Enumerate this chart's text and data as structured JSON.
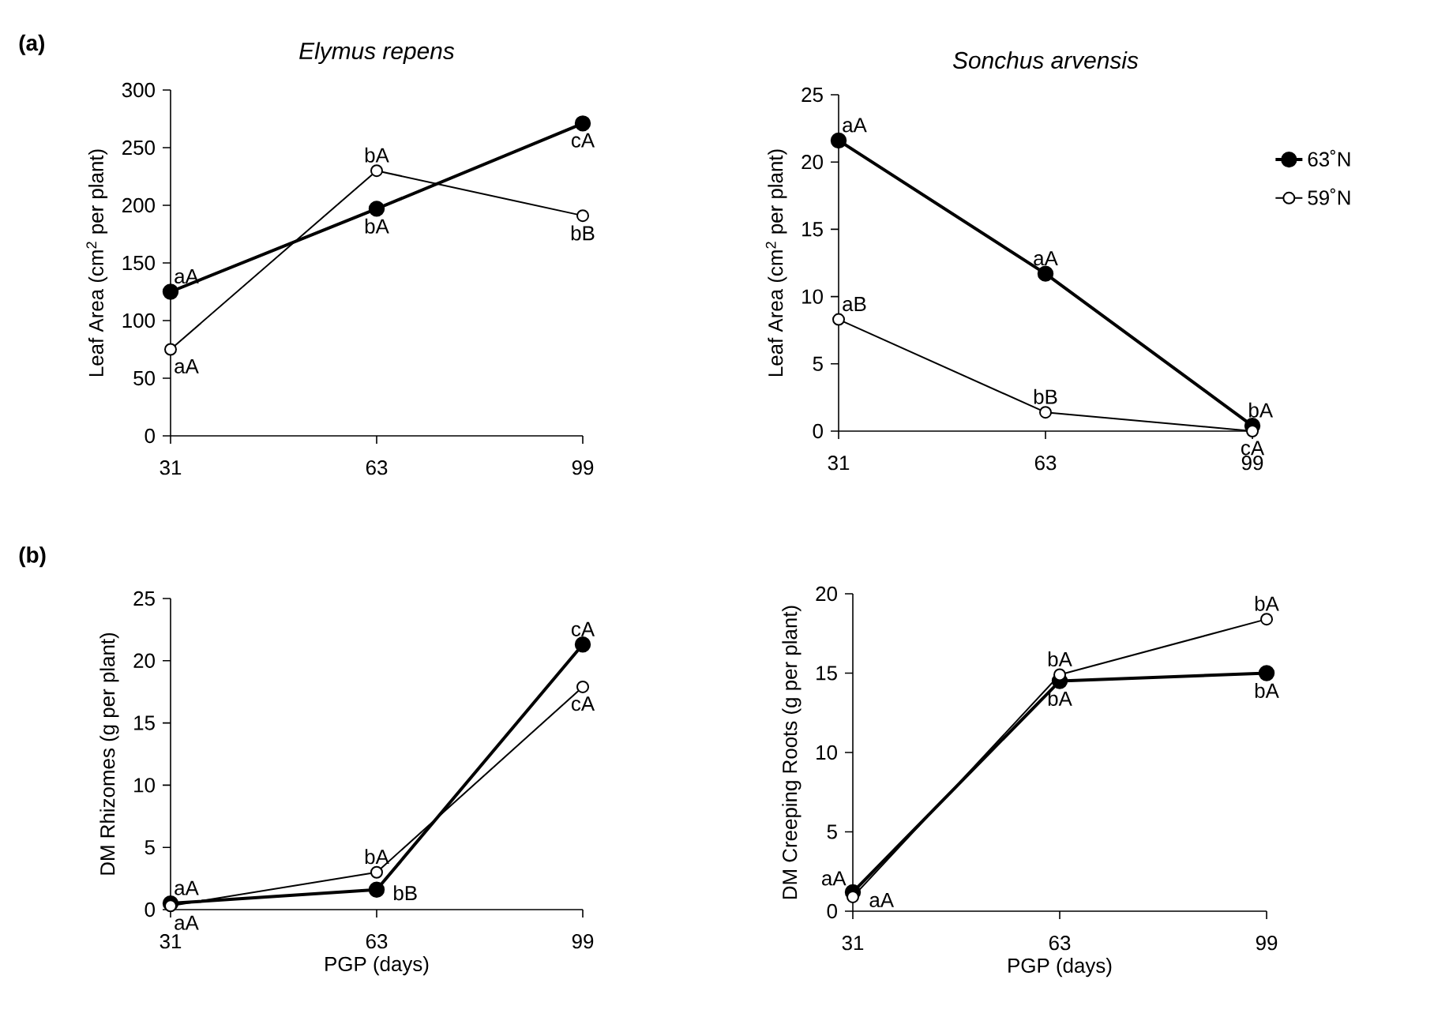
{
  "chart_data": [
    {
      "type": "line",
      "title": "Elymus repens",
      "ylabel": "Leaf Area (cm$^{2}$ per plant)",
      "categories": [
        "31",
        "63",
        "99"
      ],
      "marker": "circle",
      "series": [
        {
          "color": "#000000",
          "values": [
            125,
            197,
            271
          ]
        },
        {
          "color": "#000000",
          "values": [
            75,
            230,
            191
          ]
        }
      ],
      "ylim": [
        0,
        300
      ],
      "yticks": [
        0,
        50,
        100,
        150,
        200,
        250,
        300
      ],
      "annotations": [
        "(a)",
        {
          "text": "aA",
          "x": "31",
          "y": 125
        },
        {
          "text": "bA",
          "x": "63",
          "y": 197
        },
        {
          "text": "cA",
          "x": "99",
          "y": 271
        },
        {
          "text": "aA",
          "x": "31",
          "y": 75
        },
        {
          "text": "bA",
          "x": "63",
          "y": 230
        },
        {
          "text": "bB",
          "x": "99",
          "y": 191
        }
      ]
    },
    {
      "type": "line",
      "title": "Sonchus arvensis",
      "ylabel": "Leaf Area (cm$^{2}$ per plant)",
      "categories": [
        "31",
        "63",
        "99"
      ],
      "marker": "circle",
      "legend": "right",
      "series": [
        {
          "name": "63˚N",
          "color": "#000000",
          "values": [
            21.6,
            11.7,
            0.4
          ]
        },
        {
          "name": "59˚N",
          "color": "#000000",
          "values": [
            8.3,
            1.4,
            0
          ]
        }
      ],
      "ylim": [
        0,
        25
      ],
      "yticks": [
        0,
        5,
        10,
        15,
        20,
        25
      ],
      "annotations": [
        {
          "text": "aA",
          "x": "31",
          "y": 21.6
        },
        {
          "text": "aA",
          "x": "63",
          "y": 11.7
        },
        {
          "text": "bA",
          "x": "99",
          "y": 0.4
        },
        {
          "text": "aB",
          "x": "31",
          "y": 8.3
        },
        {
          "text": "bB",
          "x": "63",
          "y": 1.4
        },
        {
          "text": "cA",
          "x": "99",
          "y": 0
        }
      ]
    },
    {
      "type": "line",
      "xlabel": "PGP (days)",
      "ylabel": "DM Rhizomes (g per plant)",
      "categories": [
        "31",
        "63",
        "99"
      ],
      "marker": "circle",
      "series": [
        {
          "color": "#000000",
          "values": [
            0.5,
            1.6,
            21.3
          ]
        },
        {
          "color": "#000000",
          "values": [
            0.3,
            3.0,
            17.9
          ]
        }
      ],
      "ylim": [
        0,
        25
      ],
      "yticks": [
        0,
        5,
        10,
        15,
        20,
        25
      ],
      "annotations": [
        "(b)",
        {
          "text": "aA",
          "x": "31",
          "y": 0.5
        },
        {
          "text": "bB",
          "x": "63",
          "y": 1.6
        },
        {
          "text": "cA",
          "x": "99",
          "y": 21.3
        },
        {
          "text": "aA",
          "x": "31",
          "y": 0.3
        },
        {
          "text": "bA",
          "x": "63",
          "y": 3.0
        },
        {
          "text": "cA",
          "x": "99",
          "y": 17.9
        }
      ]
    },
    {
      "type": "line",
      "xlabel": "PGP (days)",
      "ylabel": "DM Creeping Roots (g per plant)",
      "categories": [
        "31",
        "63",
        "99"
      ],
      "marker": "circle",
      "series": [
        {
          "color": "#000000",
          "values": [
            1.2,
            14.5,
            15.0
          ]
        },
        {
          "color": "#000000",
          "values": [
            0.9,
            14.9,
            18.4
          ]
        }
      ],
      "ylim": [
        0,
        20
      ],
      "yticks": [
        0,
        5,
        10,
        15,
        20
      ],
      "annotations": [
        {
          "text": "aA",
          "x": "31",
          "y": 1.2
        },
        {
          "text": "bA",
          "x": "63",
          "y": 14.5
        },
        {
          "text": "bA",
          "x": "99",
          "y": 15.0
        },
        {
          "text": "aA",
          "x": "31",
          "y": 0.9
        },
        {
          "text": "bA",
          "x": "63",
          "y": 14.9
        },
        {
          "text": "bA",
          "x": "99",
          "y": 18.4
        }
      ]
    }
  ]
}
